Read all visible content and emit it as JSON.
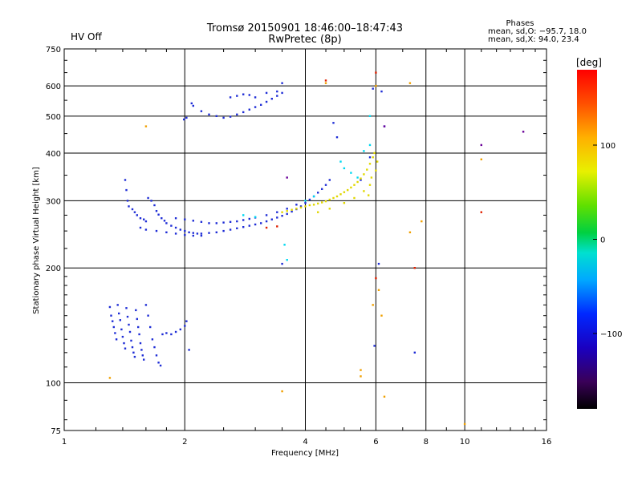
{
  "status": {
    "hv_text": "HV Off",
    "hv_color": "#dd0000"
  },
  "phases": {
    "title": "Phases",
    "line_o": "mean, sd,O: −95.7, 18.0",
    "line_x": "mean, sd,X:  94.0, 23.4"
  },
  "colorbar": {
    "unit": "[deg]",
    "ticks": [
      "100",
      "0",
      "−100"
    ],
    "tick_values": [
      100,
      0,
      -100
    ],
    "range": [
      -180,
      180
    ]
  },
  "chart_data": {
    "type": "scatter",
    "title": "Tromsø 20150901 18:46:00–18:47:43",
    "subtitle": "RwPretec (8p)",
    "xlabel": "Frequency [MHz]",
    "ylabel": "Stationary phase Virtual Height [km]",
    "x_scale": "log",
    "y_scale": "log",
    "xlim": [
      1,
      16
    ],
    "ylim": [
      75,
      750
    ],
    "x_ticks": [
      1,
      2,
      4,
      6,
      8,
      10,
      16
    ],
    "x_tick_labels": [
      "1",
      "2",
      "4",
      "6",
      "8",
      "10",
      "16"
    ],
    "y_ticks": [
      75,
      100,
      200,
      300,
      400,
      500,
      600,
      750
    ],
    "y_tick_labels": [
      "75",
      "100",
      "200",
      "300",
      "400",
      "500",
      "600",
      "750"
    ],
    "grid": true,
    "color_scale": "phase [deg]",
    "series": [
      {
        "points": [
          [
            1.3,
            158
          ],
          [
            1.31,
            150
          ],
          [
            1.32,
            145
          ],
          [
            1.33,
            140
          ],
          [
            1.34,
            135
          ],
          [
            1.35,
            130
          ],
          [
            1.36,
            160
          ],
          [
            1.37,
            152
          ],
          [
            1.38,
            146
          ],
          [
            1.39,
            138
          ],
          [
            1.4,
            132
          ],
          [
            1.41,
            127
          ],
          [
            1.42,
            123
          ],
          [
            1.43,
            157
          ],
          [
            1.44,
            149
          ],
          [
            1.45,
            142
          ],
          [
            1.46,
            136
          ],
          [
            1.47,
            129
          ],
          [
            1.48,
            124
          ],
          [
            1.49,
            120
          ],
          [
            1.5,
            117
          ],
          [
            1.51,
            155
          ],
          [
            1.52,
            147
          ],
          [
            1.53,
            140
          ],
          [
            1.54,
            134
          ],
          [
            1.55,
            127
          ],
          [
            1.56,
            122
          ],
          [
            1.57,
            118
          ],
          [
            1.58,
            115
          ],
          [
            1.6,
            160
          ],
          [
            1.62,
            150
          ],
          [
            1.64,
            140
          ],
          [
            1.66,
            130
          ],
          [
            1.68,
            124
          ],
          [
            1.7,
            118
          ],
          [
            1.72,
            113
          ],
          [
            1.74,
            111
          ],
          [
            1.76,
            134
          ],
          [
            1.8,
            135
          ],
          [
            1.85,
            134
          ],
          [
            1.9,
            136
          ],
          [
            1.95,
            138
          ],
          [
            2.0,
            141
          ],
          [
            2.02,
            145
          ],
          [
            2.05,
            122
          ],
          [
            1.42,
            340
          ],
          [
            1.43,
            320
          ],
          [
            1.44,
            300
          ],
          [
            1.45,
            290
          ],
          [
            1.48,
            285
          ],
          [
            1.5,
            280
          ],
          [
            1.52,
            275
          ],
          [
            1.55,
            270
          ],
          [
            1.58,
            268
          ],
          [
            1.6,
            265
          ],
          [
            1.62,
            305
          ],
          [
            1.65,
            300
          ],
          [
            1.68,
            292
          ],
          [
            1.7,
            282
          ],
          [
            1.72,
            276
          ],
          [
            1.75,
            270
          ],
          [
            1.78,
            266
          ],
          [
            1.8,
            262
          ],
          [
            1.85,
            258
          ],
          [
            1.9,
            255
          ],
          [
            1.95,
            252
          ],
          [
            2.0,
            250
          ],
          [
            2.05,
            248
          ],
          [
            2.1,
            247
          ],
          [
            2.15,
            246
          ],
          [
            2.2,
            246
          ],
          [
            2.3,
            247
          ],
          [
            2.4,
            248
          ],
          [
            2.5,
            250
          ],
          [
            2.6,
            252
          ],
          [
            2.7,
            254
          ],
          [
            2.8,
            256
          ],
          [
            2.9,
            258
          ],
          [
            3.0,
            260
          ],
          [
            3.1,
            262
          ],
          [
            3.2,
            265
          ],
          [
            3.3,
            268
          ],
          [
            3.4,
            271
          ],
          [
            3.5,
            274
          ],
          [
            3.6,
            277
          ],
          [
            3.7,
            281
          ],
          [
            3.8,
            285
          ],
          [
            3.9,
            290
          ],
          [
            4.0,
            296
          ],
          [
            4.1,
            302
          ],
          [
            4.2,
            308
          ],
          [
            4.3,
            315
          ],
          [
            4.4,
            322
          ],
          [
            4.5,
            330
          ],
          [
            4.6,
            340
          ],
          [
            1.9,
            270
          ],
          [
            2.0,
            268
          ],
          [
            2.1,
            266
          ],
          [
            2.2,
            264
          ],
          [
            2.3,
            262
          ],
          [
            2.4,
            262
          ],
          [
            2.5,
            263
          ],
          [
            2.6,
            264
          ],
          [
            2.7,
            265
          ],
          [
            2.8,
            267
          ],
          [
            2.9,
            269
          ],
          [
            3.0,
            271
          ],
          [
            3.2,
            275
          ],
          [
            3.4,
            280
          ],
          [
            3.6,
            286
          ],
          [
            3.8,
            293
          ],
          [
            1.55,
            255
          ],
          [
            1.6,
            252
          ],
          [
            1.7,
            250
          ],
          [
            1.8,
            248
          ],
          [
            1.9,
            246
          ],
          [
            2.0,
            244
          ],
          [
            2.1,
            243
          ],
          [
            2.2,
            243
          ],
          [
            2.08,
            540
          ],
          [
            2.1,
            532
          ],
          [
            2.2,
            515
          ],
          [
            2.3,
            505
          ],
          [
            2.4,
            500
          ],
          [
            2.5,
            495
          ],
          [
            2.6,
            498
          ],
          [
            2.7,
            505
          ],
          [
            2.8,
            512
          ],
          [
            2.9,
            520
          ],
          [
            3.0,
            528
          ],
          [
            3.1,
            535
          ],
          [
            3.2,
            545
          ],
          [
            3.3,
            555
          ],
          [
            3.4,
            565
          ],
          [
            3.5,
            575
          ],
          [
            2.6,
            560
          ],
          [
            2.7,
            565
          ],
          [
            2.8,
            570
          ],
          [
            2.9,
            568
          ],
          [
            3.0,
            560
          ],
          [
            3.2,
            575
          ],
          [
            3.4,
            580
          ],
          [
            3.5,
            610
          ],
          [
            1.99,
            490
          ],
          [
            2.02,
            495
          ],
          [
            3.5,
            205
          ],
          [
            4.7,
            480
          ],
          [
            4.8,
            440
          ],
          [
            5.9,
            590
          ],
          [
            6.2,
            580
          ],
          [
            6.3,
            470
          ],
          [
            5.95,
            125
          ],
          [
            6.1,
            205
          ],
          [
            7.5,
            120
          ],
          [
            5.8,
            390
          ],
          [
            5.5,
            340
          ]
        ]
      },
      {
        "points": [
          [
            3.5,
            280
          ],
          [
            3.6,
            282
          ],
          [
            3.7,
            284
          ],
          [
            3.8,
            286
          ],
          [
            3.9,
            288
          ],
          [
            4.0,
            290
          ],
          [
            4.1,
            292
          ],
          [
            4.2,
            293
          ],
          [
            4.3,
            295
          ],
          [
            4.4,
            297
          ],
          [
            4.5,
            299
          ],
          [
            4.6,
            302
          ],
          [
            4.7,
            305
          ],
          [
            4.8,
            308
          ],
          [
            4.9,
            312
          ],
          [
            5.0,
            316
          ],
          [
            5.1,
            320
          ],
          [
            5.2,
            325
          ],
          [
            5.3,
            330
          ],
          [
            5.4,
            336
          ],
          [
            5.5,
            343
          ],
          [
            5.6,
            352
          ],
          [
            5.7,
            362
          ],
          [
            5.8,
            375
          ],
          [
            5.9,
            390
          ],
          [
            5.95,
            400
          ],
          [
            4.3,
            280
          ],
          [
            4.6,
            286
          ],
          [
            5.0,
            296
          ],
          [
            5.3,
            305
          ],
          [
            5.6,
            318
          ],
          [
            5.8,
            330
          ],
          [
            5.85,
            345
          ],
          [
            5.75,
            310
          ],
          [
            6.0,
            360
          ],
          [
            6.05,
            380
          ]
        ]
      },
      {
        "points": [
          [
            4.9,
            380
          ],
          [
            5.0,
            365
          ],
          [
            5.2,
            355
          ],
          [
            5.4,
            345
          ],
          [
            5.6,
            405
          ],
          [
            5.8,
            420
          ],
          [
            3.6,
            210
          ],
          [
            3.55,
            230
          ],
          [
            2.8,
            275
          ],
          [
            3.0,
            272
          ],
          [
            4.0,
            300
          ],
          [
            4.2,
            308
          ],
          [
            5.8,
            500
          ]
        ]
      },
      {
        "points": [
          [
            1.6,
            470
          ],
          [
            1.3,
            103
          ],
          [
            3.5,
            95
          ],
          [
            6.3,
            92
          ],
          [
            5.5,
            104
          ],
          [
            5.5,
            108
          ],
          [
            6.2,
            150
          ],
          [
            7.3,
            248
          ],
          [
            7.8,
            265
          ],
          [
            6.0,
            600
          ],
          [
            10.0,
            78
          ],
          [
            11.0,
            385
          ],
          [
            5.9,
            160
          ],
          [
            6.1,
            175
          ],
          [
            4.5,
            610
          ],
          [
            7.3,
            610
          ]
        ]
      },
      {
        "points": [
          [
            4.5,
            620
          ],
          [
            6.0,
            650
          ],
          [
            11.0,
            280
          ],
          [
            7.5,
            200
          ],
          [
            6.0,
            188
          ],
          [
            3.2,
            255
          ],
          [
            3.4,
            257
          ]
        ]
      },
      {
        "points": [
          [
            11.0,
            420
          ],
          [
            14.0,
            455
          ],
          [
            6.3,
            470
          ],
          [
            3.6,
            345
          ]
        ]
      }
    ]
  },
  "series_colors": [
    "#1f2dd6",
    "#e0d700",
    "#00d8f0",
    "#f0a000",
    "#e02000",
    "#6a0098"
  ]
}
